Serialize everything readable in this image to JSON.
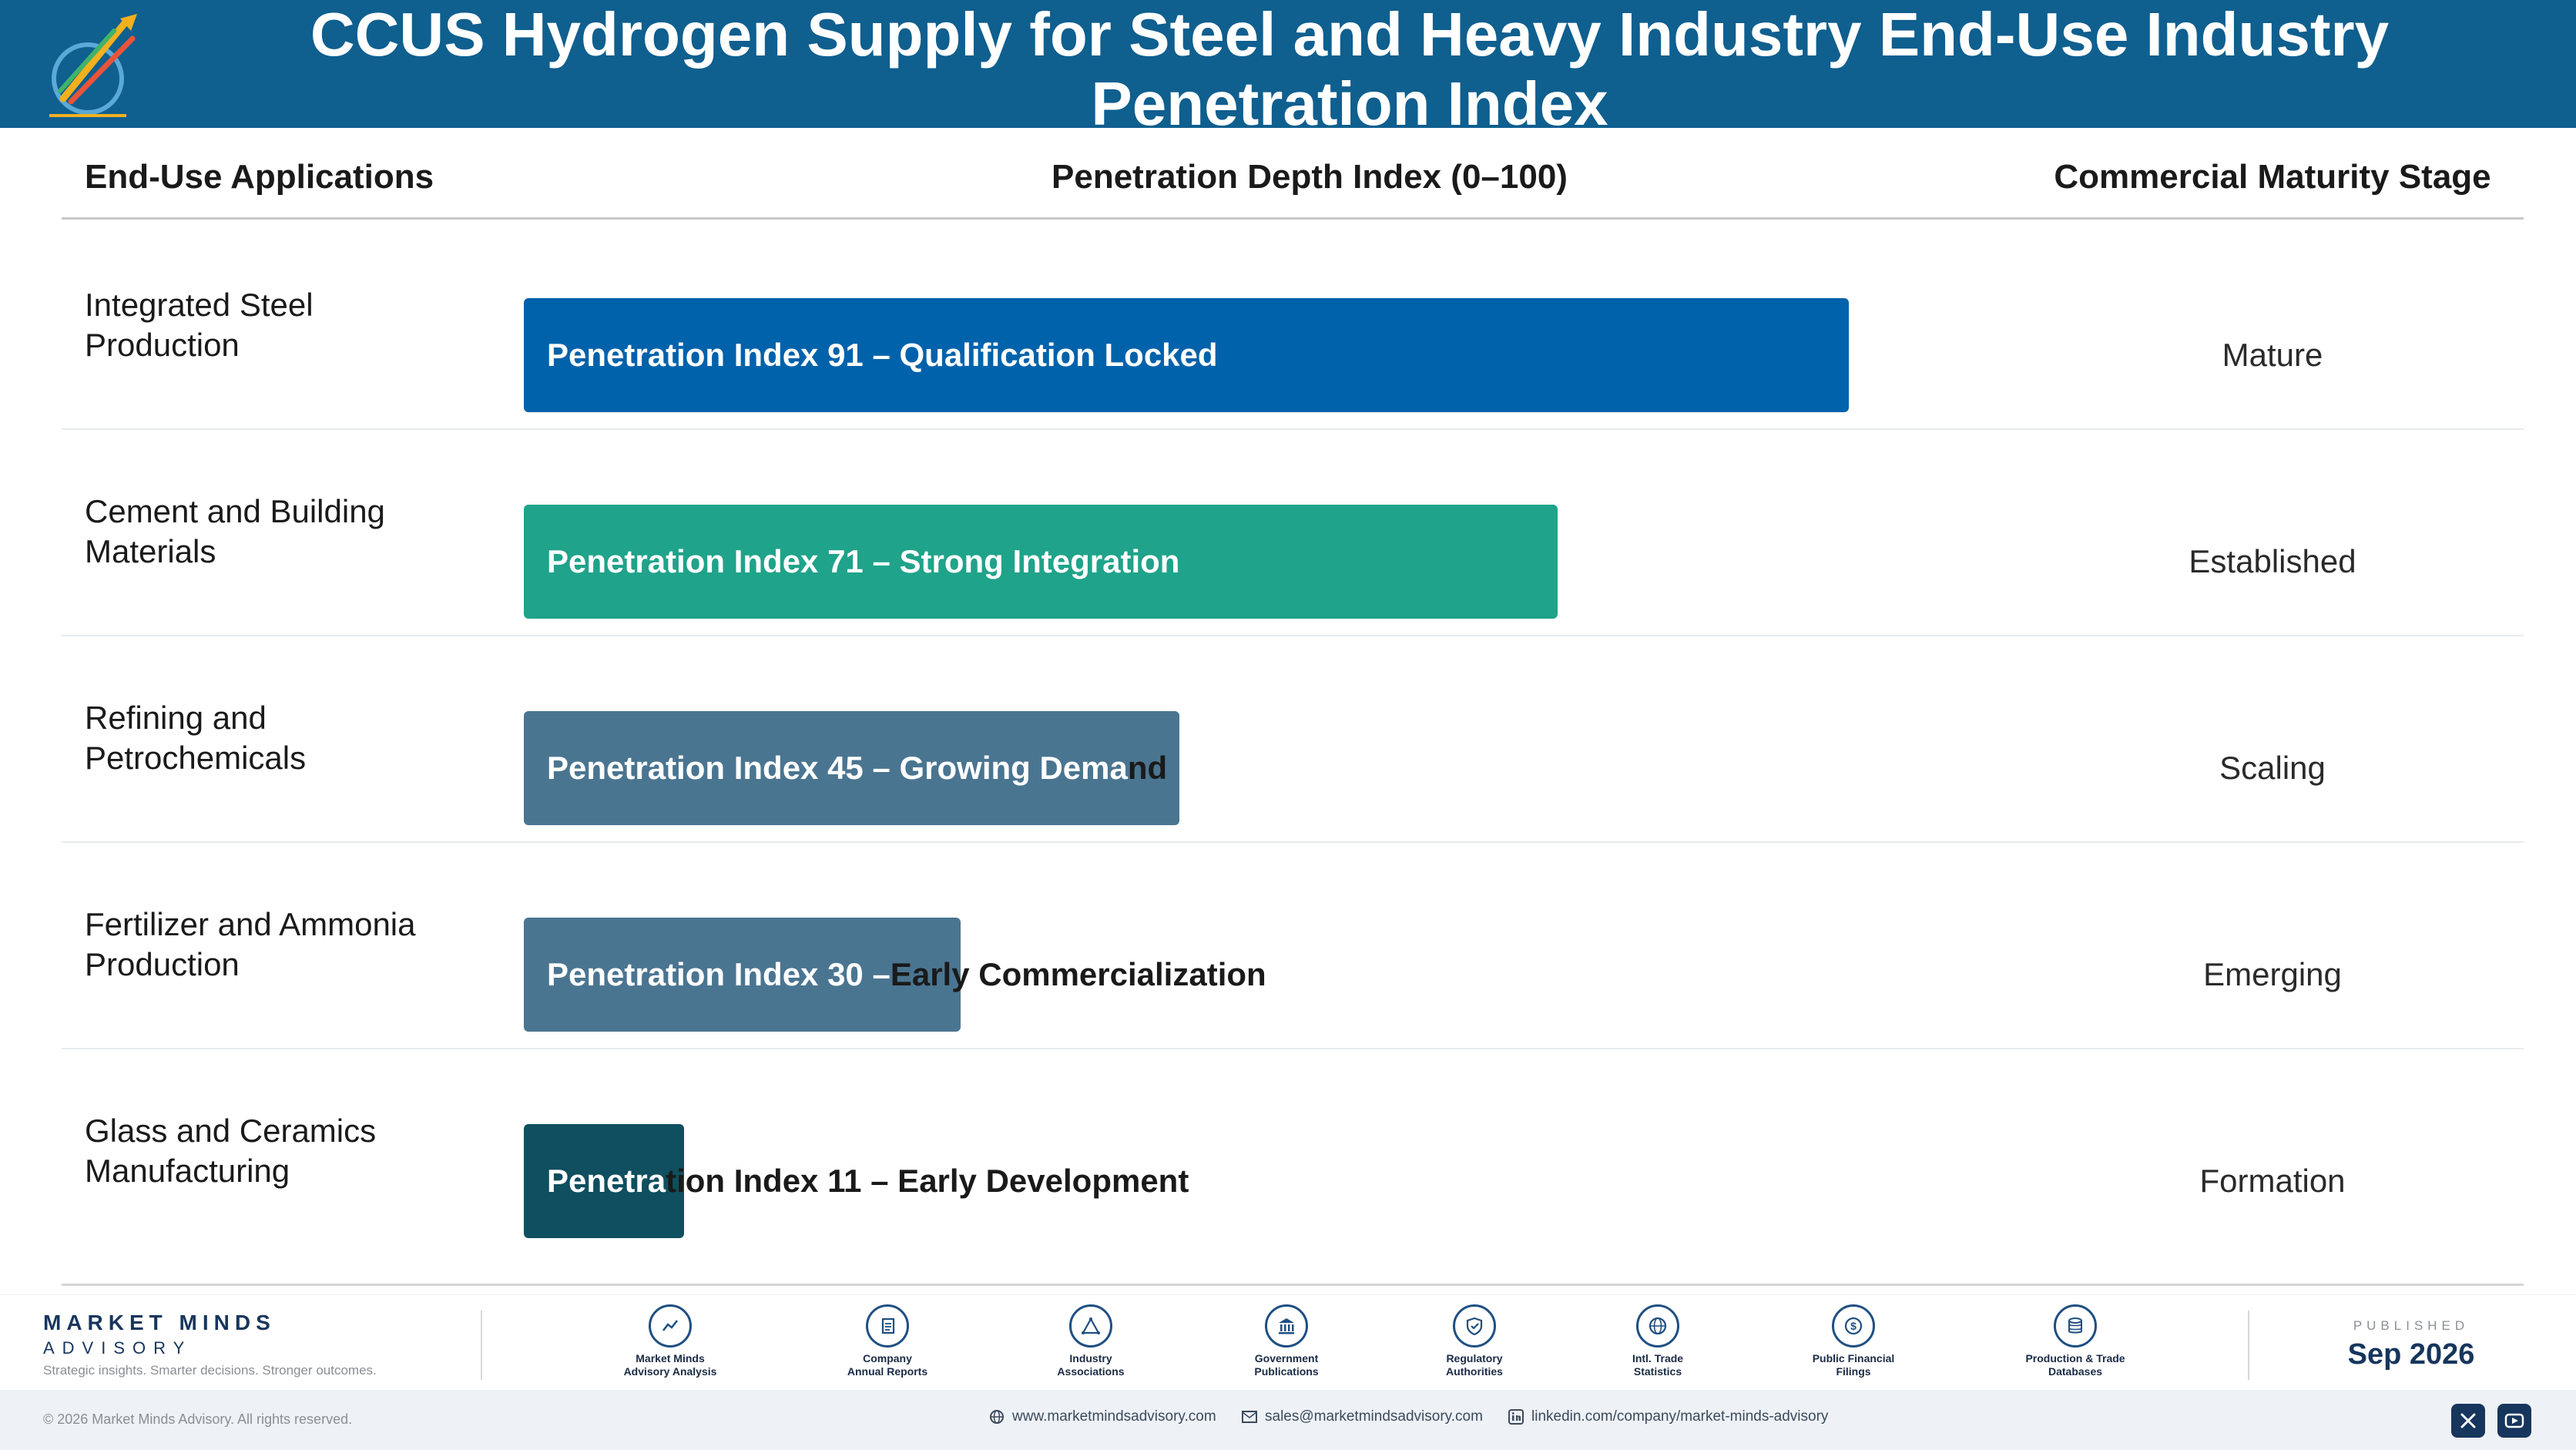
{
  "header": {
    "title": "CCUS Hydrogen Supply for Steel and Heavy Industry End-Use Industry\nPenetration Index",
    "bg_color": "#0f5f8f"
  },
  "columns": {
    "applications": "End-Use Applications",
    "index": "Penetration Depth Index (0–100)",
    "stage": "Commercial Maturity Stage"
  },
  "chart_data": {
    "type": "bar",
    "orientation": "horizontal",
    "xlim": [
      0,
      100
    ],
    "categories": [
      "Integrated Steel\nProduction",
      "Cement and Building\nMaterials",
      "Refining and\nPetrochemicals",
      "Fertilizer and Ammonia\nProduction",
      "Glass and Ceramics\nManufacturing"
    ],
    "values": [
      91,
      71,
      45,
      30,
      11
    ],
    "data_labels": [
      "Penetration Index 91 – Qualification Locked",
      "Penetration Index 71 – Strong Integration",
      "Penetration Index 45 – Growing Demand",
      "Penetration Index 30 – Early Commercialization",
      "Penetration Index 11 – Early Development"
    ],
    "stages": [
      "Mature",
      "Established",
      "Scaling",
      "Emerging",
      "Formation"
    ],
    "colors": [
      "#0062ab",
      "#1fa38a",
      "#4a7591",
      "#4a7591",
      "#0f4f5f"
    ]
  },
  "footer": {
    "brand_name": "MARKET MINDS",
    "brand_sub": "ADVISORY",
    "tagline": "Strategic insights. Smarter decisions. Stronger outcomes.",
    "sources": [
      {
        "label": "Market Minds\nAdvisory Analysis",
        "icon": "chart-line-icon"
      },
      {
        "label": "Company\nAnnual Reports",
        "icon": "document-icon"
      },
      {
        "label": "Industry\nAssociations",
        "icon": "network-icon"
      },
      {
        "label": "Government\nPublications",
        "icon": "government-building-icon"
      },
      {
        "label": "Regulatory\nAuthorities",
        "icon": "shield-check-icon"
      },
      {
        "label": "Intl. Trade\nStatistics",
        "icon": "globe-icon"
      },
      {
        "label": "Public Financial\nFilings",
        "icon": "dollar-coin-icon"
      },
      {
        "label": "Production & Trade\nDatabases",
        "icon": "database-icon"
      }
    ],
    "published_label": "PUBLISHED",
    "published_date": "Sep 2026",
    "copyright": "© 2026 Market Minds Advisory. All rights reserved.",
    "website": "www.marketmindsadvisory.com",
    "email": "sales@marketmindsadvisory.com",
    "linkedin": "linkedin.com/company/market-minds-advisory"
  }
}
